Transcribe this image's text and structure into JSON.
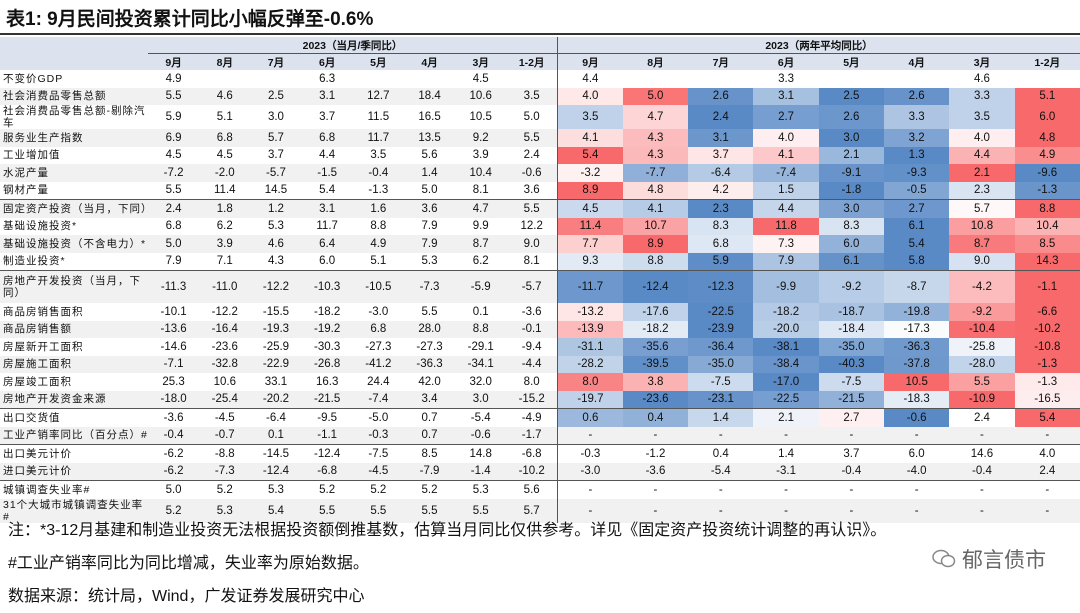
{
  "title": "表1:  9月民间投资累计同比小幅反弹至-0.6%",
  "headers": {
    "left_group": "2023（当月/季同比）",
    "right_group": "2023（两年平均同比）",
    "months": [
      "9月",
      "8月",
      "7月",
      "6月",
      "5月",
      "4月",
      "3月",
      "1-2月"
    ]
  },
  "colors": {
    "high": "#f8696b",
    "mid": "#ffffff",
    "low": "#5a8ac6",
    "header": "#dce3ef"
  },
  "chart_data": {
    "type": "heatmap",
    "rows": [
      {
        "label": "不变价GDP",
        "left": [
          "4.9",
          "",
          "",
          "6.3",
          "",
          "",
          "4.5",
          ""
        ],
        "right": [
          "4.4",
          "",
          "",
          "3.3",
          "",
          "",
          "4.6",
          ""
        ],
        "heat": false
      },
      {
        "label": "社会消费品零售总额",
        "left": [
          "5.5",
          "4.6",
          "2.5",
          "3.1",
          "12.7",
          "18.4",
          "10.6",
          "3.5"
        ],
        "right": [
          "4.0",
          "5.0",
          "2.6",
          "3.1",
          "2.5",
          "2.6",
          "3.3",
          "5.1"
        ],
        "heat": true
      },
      {
        "label": "社会消费品零售总额-剔除汽车",
        "left": [
          "5.9",
          "5.1",
          "3.0",
          "3.7",
          "11.5",
          "16.5",
          "10.5",
          "5.0"
        ],
        "right": [
          "3.5",
          "4.7",
          "2.4",
          "2.7",
          "2.6",
          "3.3",
          "3.5",
          "6.0"
        ],
        "heat": true
      },
      {
        "label": "服务业生产指数",
        "left": [
          "6.9",
          "6.8",
          "5.7",
          "6.8",
          "11.7",
          "13.5",
          "9.2",
          "5.5"
        ],
        "right": [
          "4.1",
          "4.3",
          "3.1",
          "4.0",
          "3.0",
          "3.2",
          "4.0",
          "4.8"
        ],
        "heat": true
      },
      {
        "label": "工业增加值",
        "left": [
          "4.5",
          "4.5",
          "3.7",
          "4.4",
          "3.5",
          "5.6",
          "3.9",
          "2.4"
        ],
        "right": [
          "5.4",
          "4.3",
          "3.7",
          "4.1",
          "2.1",
          "1.3",
          "4.4",
          "4.9"
        ],
        "heat": true
      },
      {
        "label": "水泥产量",
        "left": [
          "-7.2",
          "-2.0",
          "-5.7",
          "-1.5",
          "-0.4",
          "1.4",
          "10.4",
          "-0.6"
        ],
        "right": [
          "-3.2",
          "-7.7",
          "-6.4",
          "-7.4",
          "-9.1",
          "-9.3",
          "2.1",
          "-9.6"
        ],
        "heat": true
      },
      {
        "label": "钢材产量",
        "left": [
          "5.5",
          "11.4",
          "14.5",
          "5.4",
          "-1.3",
          "5.0",
          "8.1",
          "3.6"
        ],
        "right": [
          "8.9",
          "4.8",
          "4.2",
          "1.5",
          "-1.8",
          "-0.5",
          "2.3",
          "-1.3"
        ],
        "heat": true,
        "sep": true
      },
      {
        "label": "固定资产投资（当月，下同）",
        "left": [
          "2.4",
          "1.8",
          "1.2",
          "3.1",
          "1.6",
          "3.6",
          "4.7",
          "5.5"
        ],
        "right": [
          "4.5",
          "4.1",
          "2.3",
          "4.4",
          "3.0",
          "2.7",
          "5.7",
          "8.8"
        ],
        "heat": true
      },
      {
        "label": "基础设施投资*",
        "left": [
          "6.8",
          "6.2",
          "5.3",
          "11.7",
          "8.8",
          "7.9",
          "9.9",
          "12.2"
        ],
        "right": [
          "11.4",
          "10.7",
          "8.3",
          "11.8",
          "8.3",
          "6.1",
          "10.8",
          "10.4"
        ],
        "heat": true
      },
      {
        "label": "基础设施投资（不含电力）*",
        "left": [
          "5.0",
          "3.9",
          "4.6",
          "6.4",
          "4.9",
          "7.9",
          "8.7",
          "9.0"
        ],
        "right": [
          "7.7",
          "8.9",
          "6.8",
          "7.3",
          "6.0",
          "5.4",
          "8.7",
          "8.5"
        ],
        "heat": true
      },
      {
        "label": "制造业投资*",
        "left": [
          "7.9",
          "7.1",
          "4.3",
          "6.0",
          "5.1",
          "5.3",
          "6.2",
          "8.1"
        ],
        "right": [
          "9.3",
          "8.8",
          "5.9",
          "7.9",
          "6.1",
          "5.8",
          "9.0",
          "14.3"
        ],
        "heat": true,
        "sep": true
      },
      {
        "label": "房地产开发投资（当月，下同）",
        "left": [
          "-11.3",
          "-11.0",
          "-12.2",
          "-10.3",
          "-10.5",
          "-7.3",
          "-5.9",
          "-5.7"
        ],
        "right": [
          "-11.7",
          "-12.4",
          "-12.3",
          "-9.9",
          "-9.2",
          "-8.7",
          "-4.2",
          "-1.1"
        ],
        "heat": true,
        "tall": true
      },
      {
        "label": "商品房销售面积",
        "left": [
          "-10.1",
          "-12.2",
          "-15.5",
          "-18.2",
          "-3.0",
          "5.5",
          "0.1",
          "-3.6"
        ],
        "right": [
          "-13.2",
          "-17.6",
          "-22.5",
          "-18.2",
          "-18.7",
          "-19.8",
          "-9.2",
          "-6.6"
        ],
        "heat": true
      },
      {
        "label": "商品房销售额",
        "left": [
          "-13.6",
          "-16.4",
          "-19.3",
          "-19.2",
          "6.8",
          "28.0",
          "8.8",
          "-0.1"
        ],
        "right": [
          "-13.9",
          "-18.2",
          "-23.9",
          "-20.0",
          "-18.4",
          "-17.3",
          "-10.4",
          "-10.2"
        ],
        "heat": true
      },
      {
        "label": "房屋新开工面积",
        "left": [
          "-14.6",
          "-23.6",
          "-25.9",
          "-30.3",
          "-27.3",
          "-27.3",
          "-29.1",
          "-9.4"
        ],
        "right": [
          "-31.1",
          "-35.6",
          "-36.4",
          "-38.1",
          "-35.0",
          "-36.3",
          "-25.8",
          "-10.8"
        ],
        "heat": true
      },
      {
        "label": "房屋施工面积",
        "left": [
          "-7.1",
          "-32.8",
          "-22.9",
          "-26.8",
          "-41.2",
          "-36.3",
          "-34.1",
          "-4.4"
        ],
        "right": [
          "-28.2",
          "-39.5",
          "-35.0",
          "-38.4",
          "-40.3",
          "-37.8",
          "-28.0",
          "-1.3"
        ],
        "heat": true
      },
      {
        "label": "房屋竣工面积",
        "left": [
          "25.3",
          "10.6",
          "33.1",
          "16.3",
          "24.4",
          "42.0",
          "32.0",
          "8.0"
        ],
        "right": [
          "8.0",
          "3.8",
          "-7.5",
          "-17.0",
          "-7.5",
          "10.5",
          "5.5",
          "-1.3"
        ],
        "heat": true
      },
      {
        "label": "房地产开发资金来源",
        "left": [
          "-18.0",
          "-25.4",
          "-20.2",
          "-21.5",
          "-7.4",
          "3.4",
          "3.0",
          "-15.2"
        ],
        "right": [
          "-19.7",
          "-23.6",
          "-23.1",
          "-22.5",
          "-21.5",
          "-18.3",
          "-10.9",
          "-16.5"
        ],
        "heat": true,
        "sep": true
      },
      {
        "label": "出口交货值",
        "left": [
          "-3.6",
          "-4.5",
          "-6.4",
          "-9.5",
          "-5.0",
          "0.7",
          "-5.4",
          "-4.9"
        ],
        "right": [
          "0.6",
          "0.4",
          "1.4",
          "2.1",
          "2.7",
          "-0.6",
          "2.4",
          "5.4"
        ],
        "heat": true
      },
      {
        "label": "工业产销率同比（百分点）#",
        "left": [
          "-0.4",
          "-0.7",
          "0.1",
          "-1.1",
          "-0.3",
          "0.7",
          "-0.6",
          "-1.7"
        ],
        "right": [
          "-",
          "-",
          "-",
          "-",
          "-",
          "-",
          "-",
          "-"
        ],
        "heat": false,
        "sep": true
      },
      {
        "label": "出口美元计价",
        "left": [
          "-6.2",
          "-8.8",
          "-14.5",
          "-12.4",
          "-7.5",
          "8.5",
          "14.8",
          "-6.8"
        ],
        "right": [
          "-0.3",
          "-1.2",
          "0.4",
          "1.4",
          "3.7",
          "6.0",
          "14.6",
          "4.0"
        ],
        "heat": false
      },
      {
        "label": "进口美元计价",
        "left": [
          "-6.2",
          "-7.3",
          "-12.4",
          "-6.8",
          "-4.5",
          "-7.9",
          "-1.4",
          "-10.2"
        ],
        "right": [
          "-3.0",
          "-3.6",
          "-5.4",
          "-3.1",
          "-0.4",
          "-4.0",
          "-0.4",
          "2.4"
        ],
        "heat": false,
        "sep": true
      },
      {
        "label": "城镇调查失业率#",
        "left": [
          "5.0",
          "5.2",
          "5.3",
          "5.2",
          "5.2",
          "5.2",
          "5.3",
          "5.6"
        ],
        "right": [
          "-",
          "-",
          "-",
          "-",
          "-",
          "-",
          "-",
          "-"
        ],
        "heat": false
      },
      {
        "label": "31个大城市城镇调查失业率#",
        "left": [
          "5.2",
          "5.3",
          "5.4",
          "5.5",
          "5.5",
          "5.5",
          "5.5",
          "5.7"
        ],
        "right": [
          "-",
          "-",
          "-",
          "-",
          "-",
          "-",
          "-",
          "-"
        ],
        "heat": false
      }
    ]
  },
  "notes": [
    "注：*3-12月基建和制造业投资无法根据投资额倒推基数，估算当月同比仅供参考。详见《固定资产投资统计调整的再认识》。",
    "#工业产销率同比为同比增减，失业率为原始数据。",
    "数据来源：统计局，Wind，广发证券发展研究中心"
  ],
  "watermark": "郁言债市"
}
